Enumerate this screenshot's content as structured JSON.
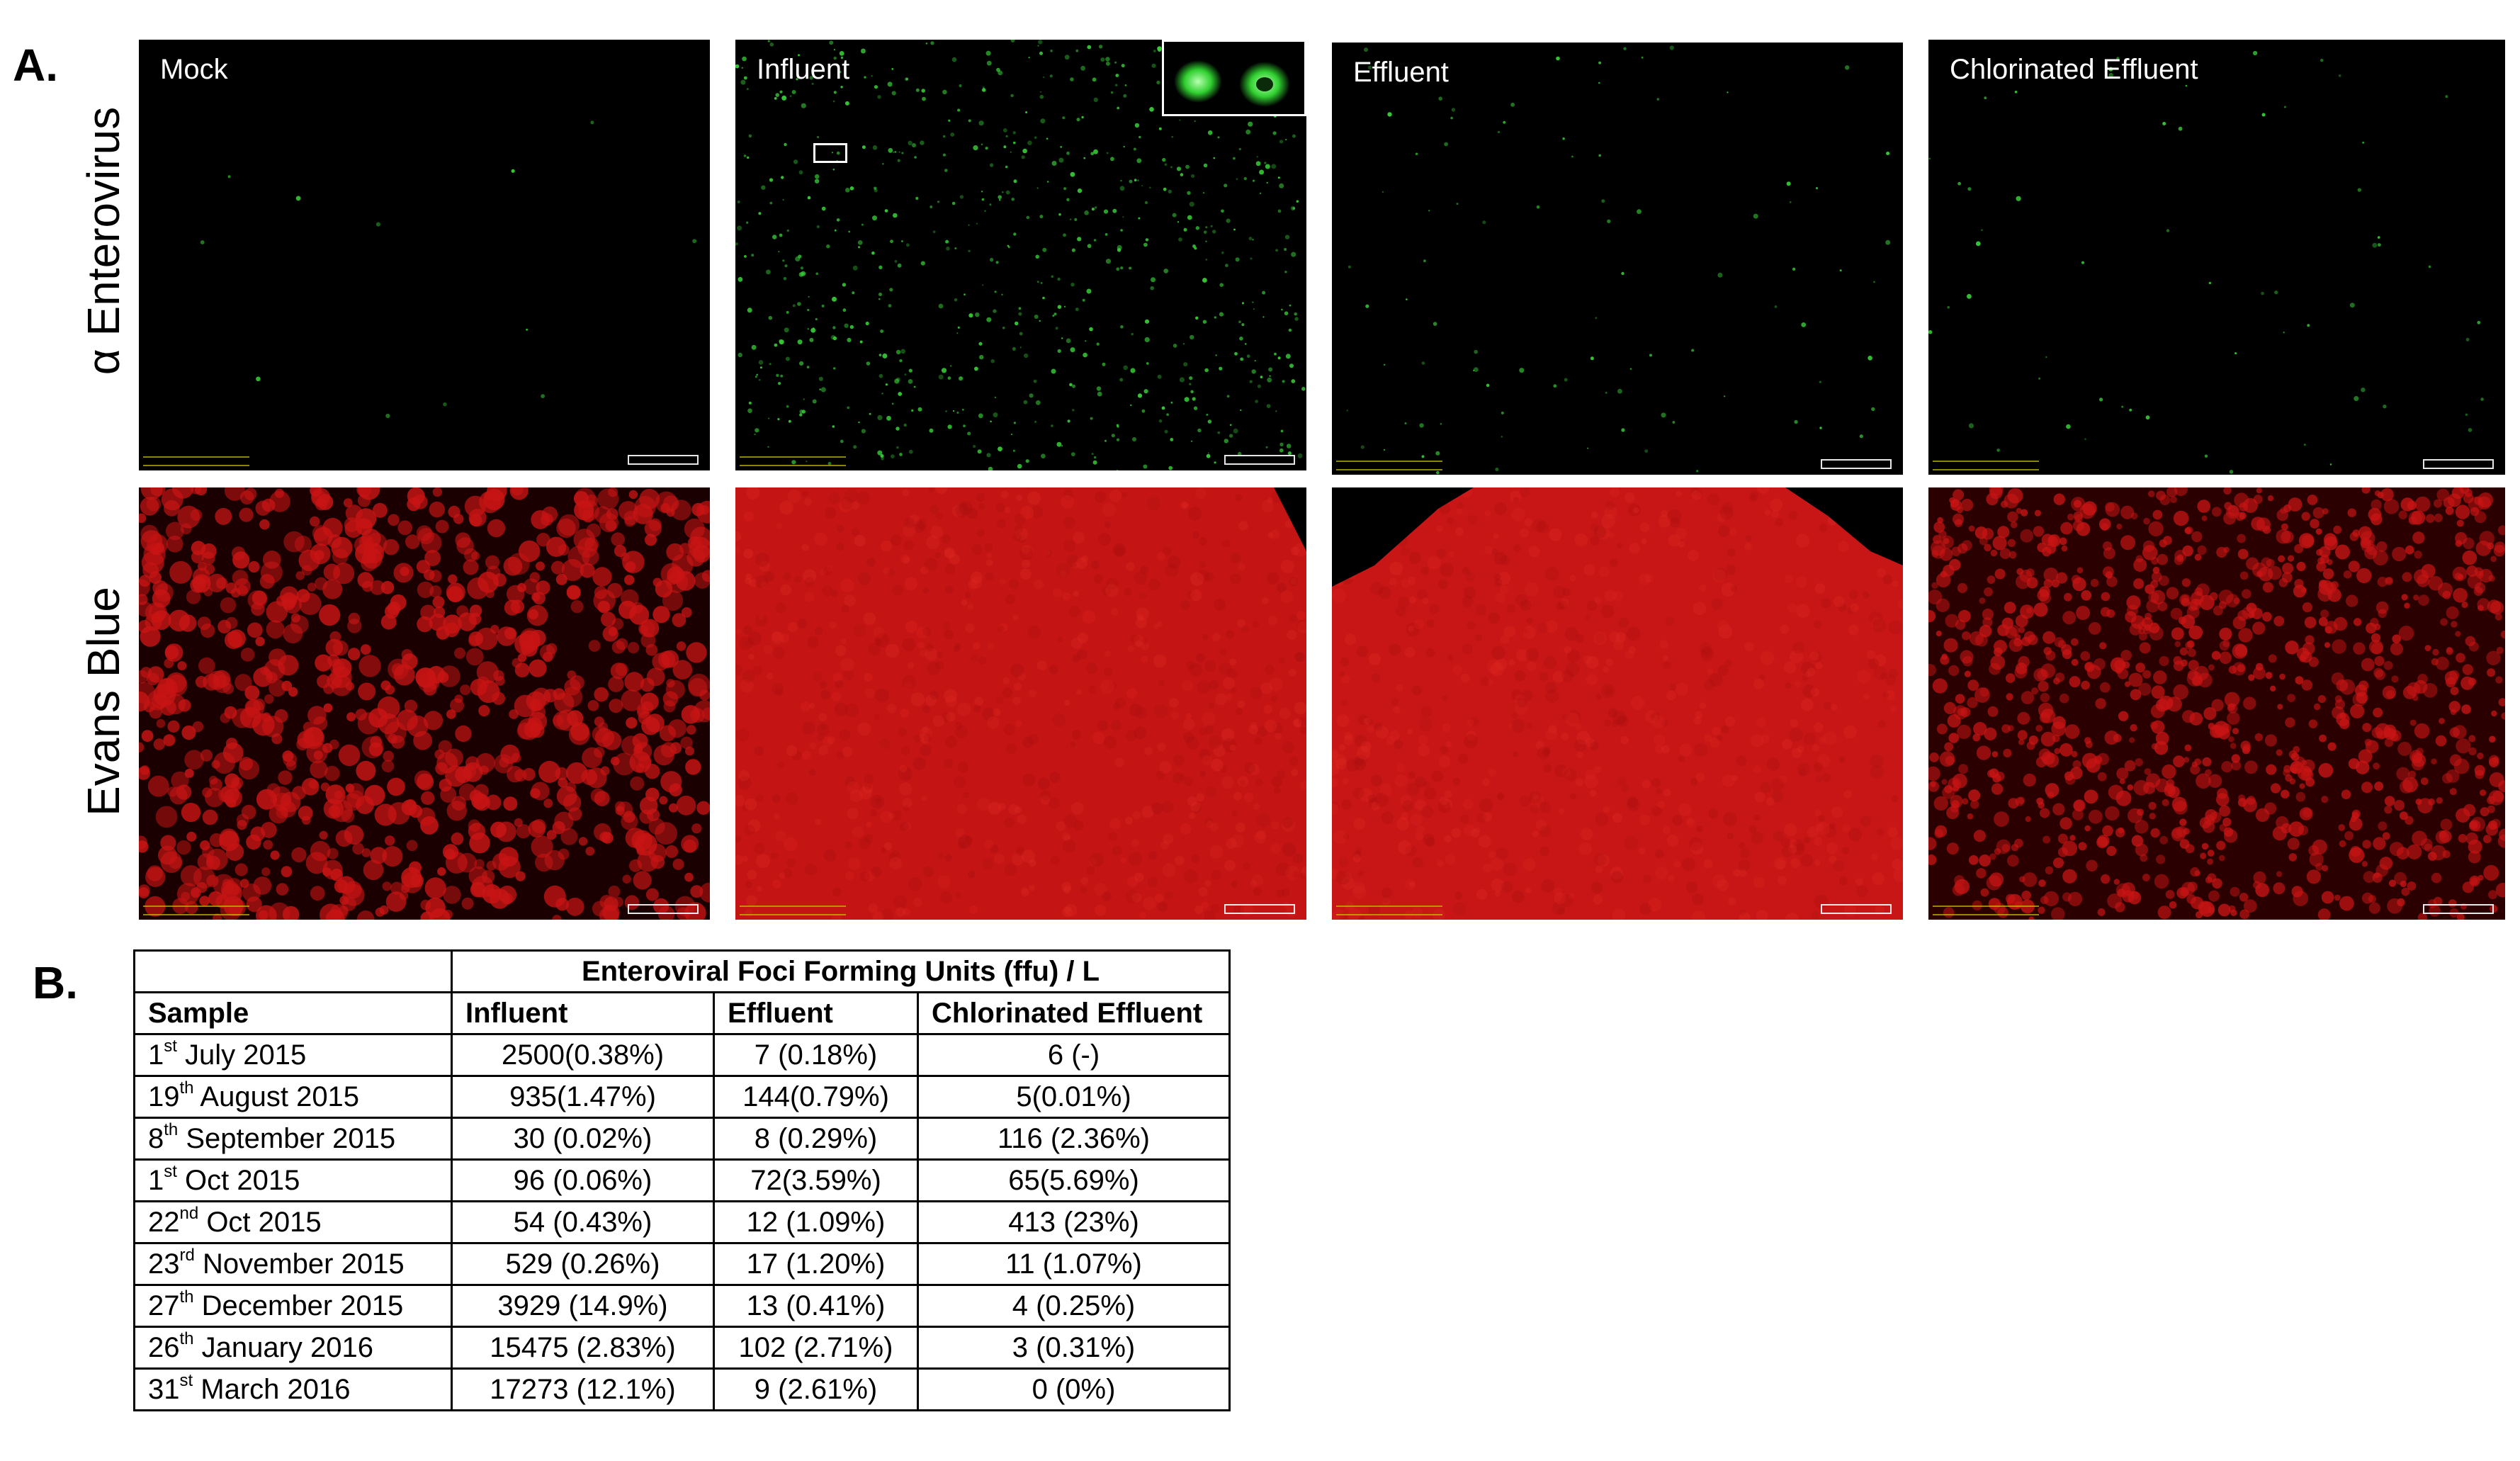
{
  "panel_a_label": "A.",
  "panel_b_label": "B.",
  "row_labels": [
    "α Enterovirus",
    "Evans Blue"
  ],
  "columns": [
    "Mock",
    "Influent",
    "Effluent",
    "Chlorinated Effluent"
  ],
  "colors": {
    "fluorescence_green": "#38d038",
    "evans_blue_red": "#c81414",
    "background": "#000000"
  },
  "table": {
    "group_header": "Enteroviral Foci Forming Units (ffu) / L",
    "headers": [
      "Sample",
      "Influent",
      "Effluent",
      "Chlorinated Effluent"
    ],
    "rows": [
      {
        "day": "1",
        "sup": "st",
        "date": " July 2015",
        "influent": "2500(0.38%)",
        "effluent": "7 (0.18%)",
        "chlorinated": "6 (-)"
      },
      {
        "day": "19",
        "sup": "th",
        "date": " August 2015",
        "influent": "935(1.47%)",
        "effluent": "144(0.79%)",
        "chlorinated": "5(0.01%)"
      },
      {
        "day": "8",
        "sup": "th",
        "date": " September 2015",
        "influent": "30 (0.02%)",
        "effluent": "8 (0.29%)",
        "chlorinated": "116 (2.36%)"
      },
      {
        "day": "1",
        "sup": "st",
        "date": " Oct 2015",
        "influent": "96 (0.06%)",
        "effluent": "72(3.59%)",
        "chlorinated": "65(5.69%)"
      },
      {
        "day": "22",
        "sup": "nd",
        "date": " Oct 2015",
        "influent": "54 (0.43%)",
        "effluent": "12 (1.09%)",
        "chlorinated": "413 (23%)"
      },
      {
        "day": "23",
        "sup": "rd",
        "date": " November 2015",
        "influent": "529 (0.26%)",
        "effluent": "17 (1.20%)",
        "chlorinated": "11 (1.07%)"
      },
      {
        "day": "27",
        "sup": "th",
        "date": " December 2015",
        "influent": "3929 (14.9%)",
        "effluent": "13 (0.41%)",
        "chlorinated": "4 (0.25%)"
      },
      {
        "day": "26",
        "sup": "th",
        "date": " January 2016",
        "influent": "15475 (2.83%)",
        "effluent": "102 (2.71%)",
        "chlorinated": "3 (0.31%)"
      },
      {
        "day": "31",
        "sup": "st",
        "date": " March 2016",
        "influent": "17273 (12.1%)",
        "effluent": "9 (2.61%)",
        "chlorinated": "0 (0%)"
      }
    ]
  }
}
